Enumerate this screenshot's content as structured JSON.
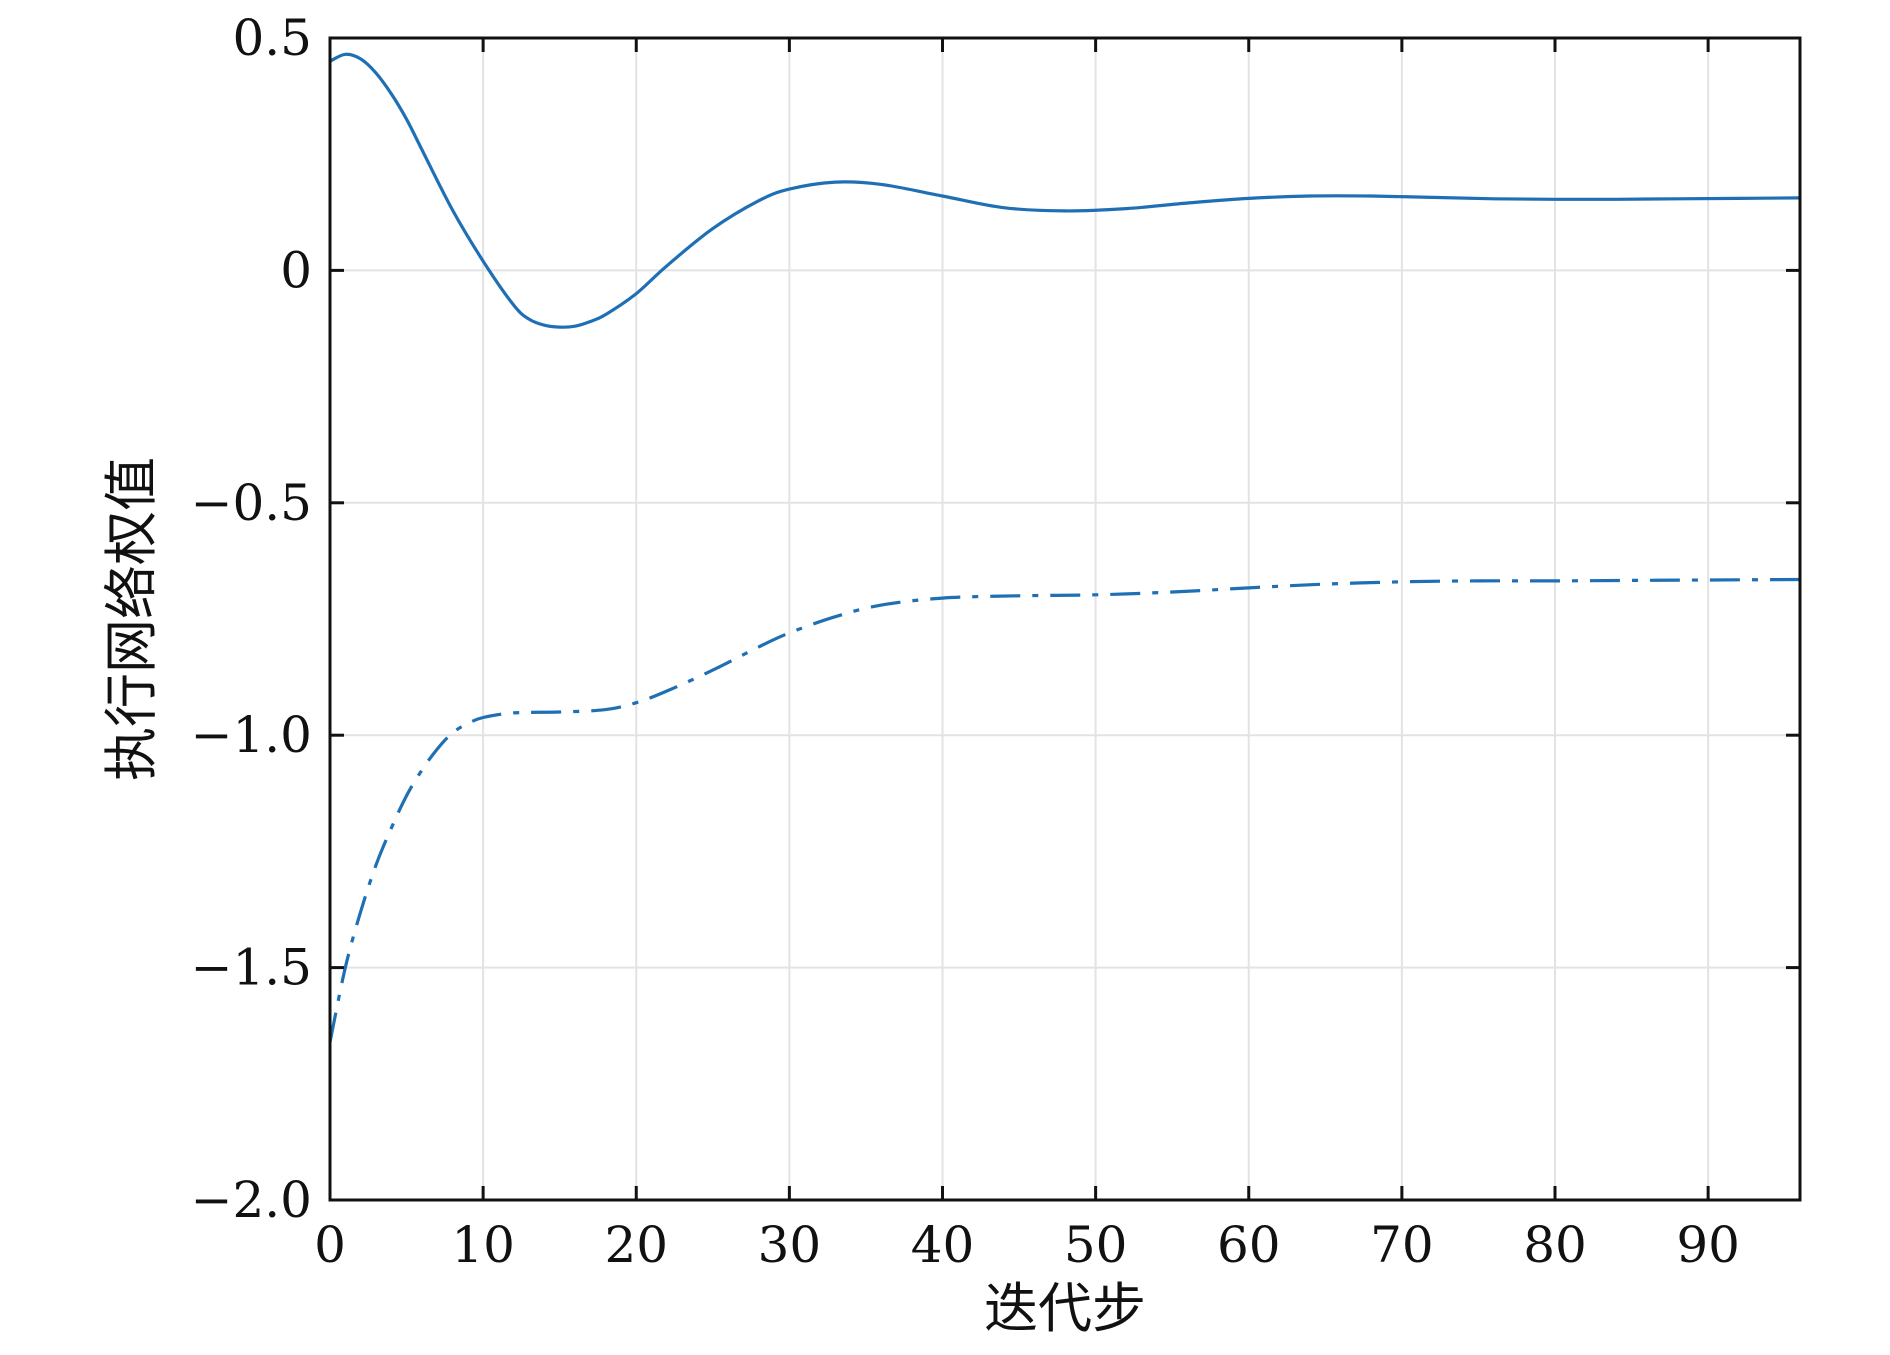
{
  "chart_data": {
    "type": "line",
    "title": "",
    "xlabel": "迭代步",
    "ylabel": "执行网络权值",
    "xlim": [
      0,
      96
    ],
    "ylim": [
      -2.0,
      0.5
    ],
    "xticks": [
      0,
      10,
      20,
      30,
      40,
      50,
      60,
      70,
      80,
      90
    ],
    "xtick_labels": [
      "0",
      "10",
      "20",
      "30",
      "40",
      "50",
      "60",
      "70",
      "80",
      "90"
    ],
    "yticks": [
      0.5,
      0,
      -0.5,
      -1.0,
      -1.5,
      -2.0
    ],
    "ytick_labels": [
      "0.5",
      "0",
      "−0.5",
      "−1.0",
      "−1.5",
      "−2.0"
    ],
    "grid": true,
    "line_color": "#1f6fb4",
    "series": [
      {
        "style": "solid",
        "x": [
          0,
          1,
          2,
          3,
          4,
          5,
          6,
          8,
          10,
          12,
          13,
          14,
          15,
          16,
          17,
          18,
          20,
          22,
          25,
          28,
          30,
          33,
          36,
          40,
          44,
          48,
          52,
          56,
          60,
          64,
          68,
          72,
          76,
          80,
          84,
          88,
          92,
          96
        ],
        "y": [
          0.45,
          0.465,
          0.455,
          0.425,
          0.38,
          0.325,
          0.26,
          0.13,
          0.02,
          -0.075,
          -0.105,
          -0.118,
          -0.122,
          -0.12,
          -0.11,
          -0.095,
          -0.05,
          0.01,
          0.09,
          0.15,
          0.175,
          0.19,
          0.185,
          0.16,
          0.135,
          0.128,
          0.133,
          0.145,
          0.155,
          0.16,
          0.16,
          0.157,
          0.154,
          0.153,
          0.153,
          0.154,
          0.155,
          0.156
        ]
      },
      {
        "style": "dashdot",
        "x": [
          0,
          1,
          2,
          3,
          4,
          5,
          6,
          7,
          8,
          9,
          10,
          12,
          15,
          18,
          20,
          22,
          25,
          28,
          30,
          33,
          36,
          40,
          45,
          50,
          55,
          60,
          65,
          70,
          75,
          80,
          85,
          90,
          96
        ],
        "y": [
          -1.66,
          -1.5,
          -1.38,
          -1.28,
          -1.2,
          -1.13,
          -1.075,
          -1.03,
          -0.995,
          -0.975,
          -0.962,
          -0.952,
          -0.95,
          -0.945,
          -0.93,
          -0.905,
          -0.86,
          -0.81,
          -0.78,
          -0.745,
          -0.72,
          -0.705,
          -0.7,
          -0.698,
          -0.692,
          -0.683,
          -0.675,
          -0.67,
          -0.668,
          -0.668,
          -0.667,
          -0.666,
          -0.665
        ]
      }
    ]
  }
}
